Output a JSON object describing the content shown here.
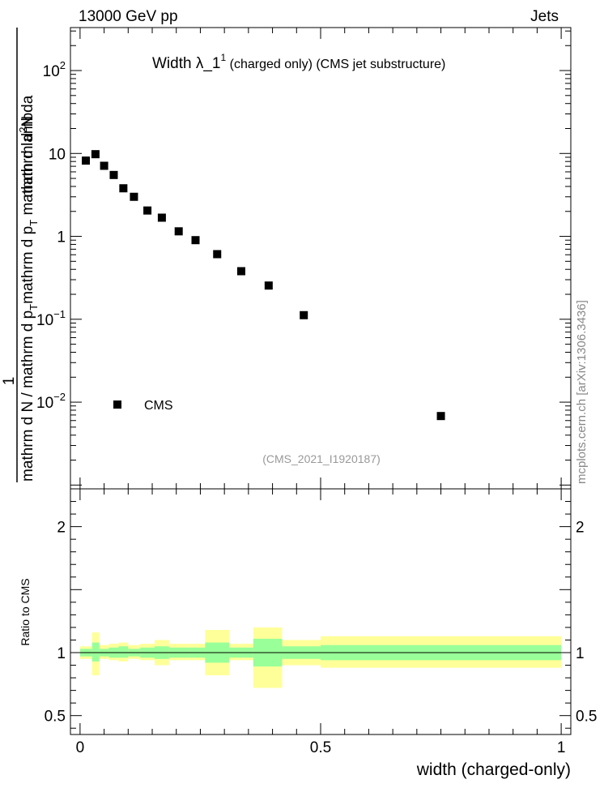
{
  "header": {
    "left": "13000 GeV pp",
    "right": "Jets"
  },
  "chart_data": {
    "type": "scatter",
    "title": "Width λ_1",
    "title_sup": "1",
    "title_suffix": " (charged only) (CMS jet substructure)",
    "xlabel": "width (charged-only)",
    "ylabel_top": "1",
    "ylabel_bottom_1": "mathrm d N / mathrm d p",
    "ylabel_bottom_1_sub": "T",
    "ylabel_bottom_2": "mathrm d p",
    "ylabel_bottom_2_sub": "T",
    "ylabel_bottom_3": " mathrm d lambda",
    "ylabel_top_main": "mathrm d",
    "ylabel_top_sup": "2",
    "ylabel_top_end": "N",
    "analysis_id": "(CMS_2021_I1920187)",
    "watermark": "mcplots.cern.ch [arXiv:1306.3436]",
    "xlim": [
      -0.02,
      1.02
    ],
    "ylim_log": [
      0.0009,
      330
    ],
    "yscale": "log",
    "x_ticks": [
      {
        "v": 0,
        "label": "0"
      },
      {
        "v": 0.5,
        "label": "0.5"
      },
      {
        "v": 1,
        "label": "1"
      }
    ],
    "y_ticks": [
      {
        "v": 0.01,
        "base": "10",
        "exp": "−2"
      },
      {
        "v": 0.1,
        "base": "10",
        "exp": "−1"
      },
      {
        "v": 1,
        "label": "1"
      },
      {
        "v": 10,
        "label": "10"
      },
      {
        "v": 100,
        "base": "10",
        "exp": "2"
      }
    ],
    "legend": {
      "label": "CMS",
      "position": "bottom-left"
    },
    "series": [
      {
        "name": "CMS",
        "x": [
          0.012,
          0.032,
          0.05,
          0.07,
          0.09,
          0.112,
          0.14,
          0.17,
          0.205,
          0.24,
          0.285,
          0.335,
          0.392,
          0.465,
          0.75
        ],
        "y": [
          8.2,
          9.8,
          7.1,
          5.5,
          3.8,
          3.0,
          2.05,
          1.68,
          1.15,
          0.9,
          0.61,
          0.38,
          0.255,
          0.112,
          0.0068
        ]
      }
    ],
    "ratio": {
      "ylabel": "Ratio to CMS",
      "ylim": [
        0.35,
        2.3
      ],
      "y_ticks": [
        {
          "v": 0.5,
          "label": "0.5"
        },
        {
          "v": 1,
          "label": "1"
        },
        {
          "v": 2,
          "label": "2"
        }
      ],
      "bins": [
        {
          "x0": 0.0,
          "x1": 0.025,
          "lo1": 0.97,
          "hi1": 1.03,
          "lo2": 0.95,
          "hi2": 1.05
        },
        {
          "x0": 0.025,
          "x1": 0.04,
          "lo1": 0.93,
          "hi1": 1.08,
          "lo2": 0.82,
          "hi2": 1.16
        },
        {
          "x0": 0.04,
          "x1": 0.06,
          "lo1": 0.97,
          "hi1": 1.03,
          "lo2": 0.95,
          "hi2": 1.06
        },
        {
          "x0": 0.06,
          "x1": 0.08,
          "lo1": 0.96,
          "hi1": 1.04,
          "lo2": 0.94,
          "hi2": 1.07
        },
        {
          "x0": 0.08,
          "x1": 0.1,
          "lo1": 0.96,
          "hi1": 1.05,
          "lo2": 0.93,
          "hi2": 1.08
        },
        {
          "x0": 0.1,
          "x1": 0.125,
          "lo1": 0.97,
          "hi1": 1.03,
          "lo2": 0.95,
          "hi2": 1.06
        },
        {
          "x0": 0.125,
          "x1": 0.155,
          "lo1": 0.96,
          "hi1": 1.04,
          "lo2": 0.94,
          "hi2": 1.07
        },
        {
          "x0": 0.155,
          "x1": 0.185,
          "lo1": 0.95,
          "hi1": 1.05,
          "lo2": 0.9,
          "hi2": 1.1
        },
        {
          "x0": 0.185,
          "x1": 0.225,
          "lo1": 0.96,
          "hi1": 1.04,
          "lo2": 0.94,
          "hi2": 1.07
        },
        {
          "x0": 0.225,
          "x1": 0.26,
          "lo1": 0.96,
          "hi1": 1.04,
          "lo2": 0.94,
          "hi2": 1.07
        },
        {
          "x0": 0.26,
          "x1": 0.31,
          "lo1": 0.92,
          "hi1": 1.08,
          "lo2": 0.82,
          "hi2": 1.18
        },
        {
          "x0": 0.31,
          "x1": 0.36,
          "lo1": 0.96,
          "hi1": 1.04,
          "lo2": 0.94,
          "hi2": 1.07
        },
        {
          "x0": 0.36,
          "x1": 0.42,
          "lo1": 0.89,
          "hi1": 1.11,
          "lo2": 0.72,
          "hi2": 1.2
        },
        {
          "x0": 0.42,
          "x1": 0.5,
          "lo1": 0.95,
          "hi1": 1.05,
          "lo2": 0.9,
          "hi2": 1.1
        },
        {
          "x0": 0.5,
          "x1": 1.0,
          "lo1": 0.94,
          "hi1": 1.06,
          "lo2": 0.88,
          "hi2": 1.13
        }
      ]
    }
  }
}
